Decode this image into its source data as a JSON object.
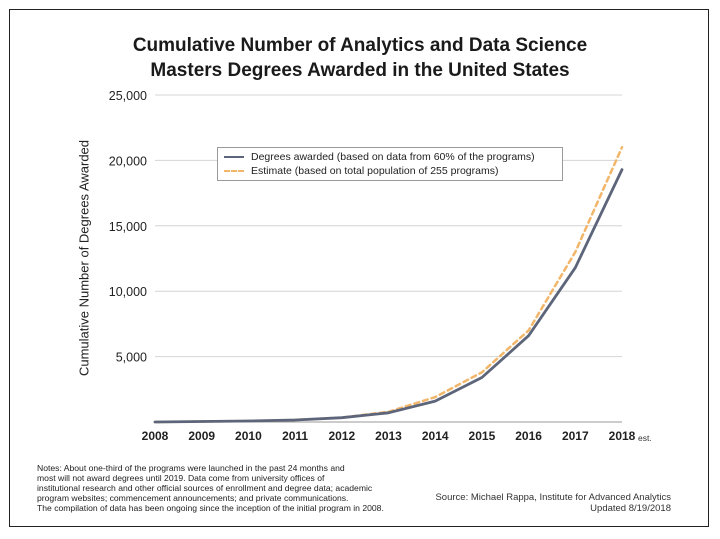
{
  "chart_data": {
    "type": "line",
    "title_line1": "Cumulative Number of Analytics and Data Science",
    "title_line2": "Masters Degrees Awarded in the United States",
    "ylabel": "Cumulative Number of Degrees Awarded",
    "xlabel": "",
    "x": [
      "2008",
      "2009",
      "2010",
      "2011",
      "2012",
      "2013",
      "2014",
      "2015",
      "2016",
      "2017",
      "2018"
    ],
    "x_suffix_last": "est.",
    "ylim": [
      0,
      25000
    ],
    "yticks": [
      0,
      5000,
      10000,
      15000,
      20000,
      25000
    ],
    "ytick_labels": [
      "",
      "5,000",
      "10,000",
      "15,000",
      "20,000",
      "25,000"
    ],
    "grid": true,
    "series": [
      {
        "name": "Degrees awarded (based on data from 60% of the programs)",
        "style": "solid",
        "color": "#5c6579",
        "values": [
          0,
          40,
          80,
          150,
          330,
          700,
          1600,
          3400,
          6600,
          11800,
          19300
        ]
      },
      {
        "name": "Estimate (based on total population of 255 programs)",
        "style": "dashed",
        "color": "#f2b66a",
        "values": [
          0,
          40,
          80,
          150,
          340,
          780,
          1900,
          3800,
          7000,
          13000,
          21000
        ]
      }
    ],
    "legend_position": "upper-center"
  },
  "notes": [
    "Notes:  About one-third of the programs were launched in the past 24 months and",
    "most will not award degrees until 2019. Data come from university offices of",
    "institutional research and other official sources of enrollment and degree data; academic",
    "program websites; commencement announcements; and private communications.",
    "The compilation of data has been ongoing since the inception of the initial program in 2008."
  ],
  "source": {
    "line1": "Source: Michael Rappa, Institute for Advanced Analytics",
    "line2": "Updated 8/19/2018"
  }
}
